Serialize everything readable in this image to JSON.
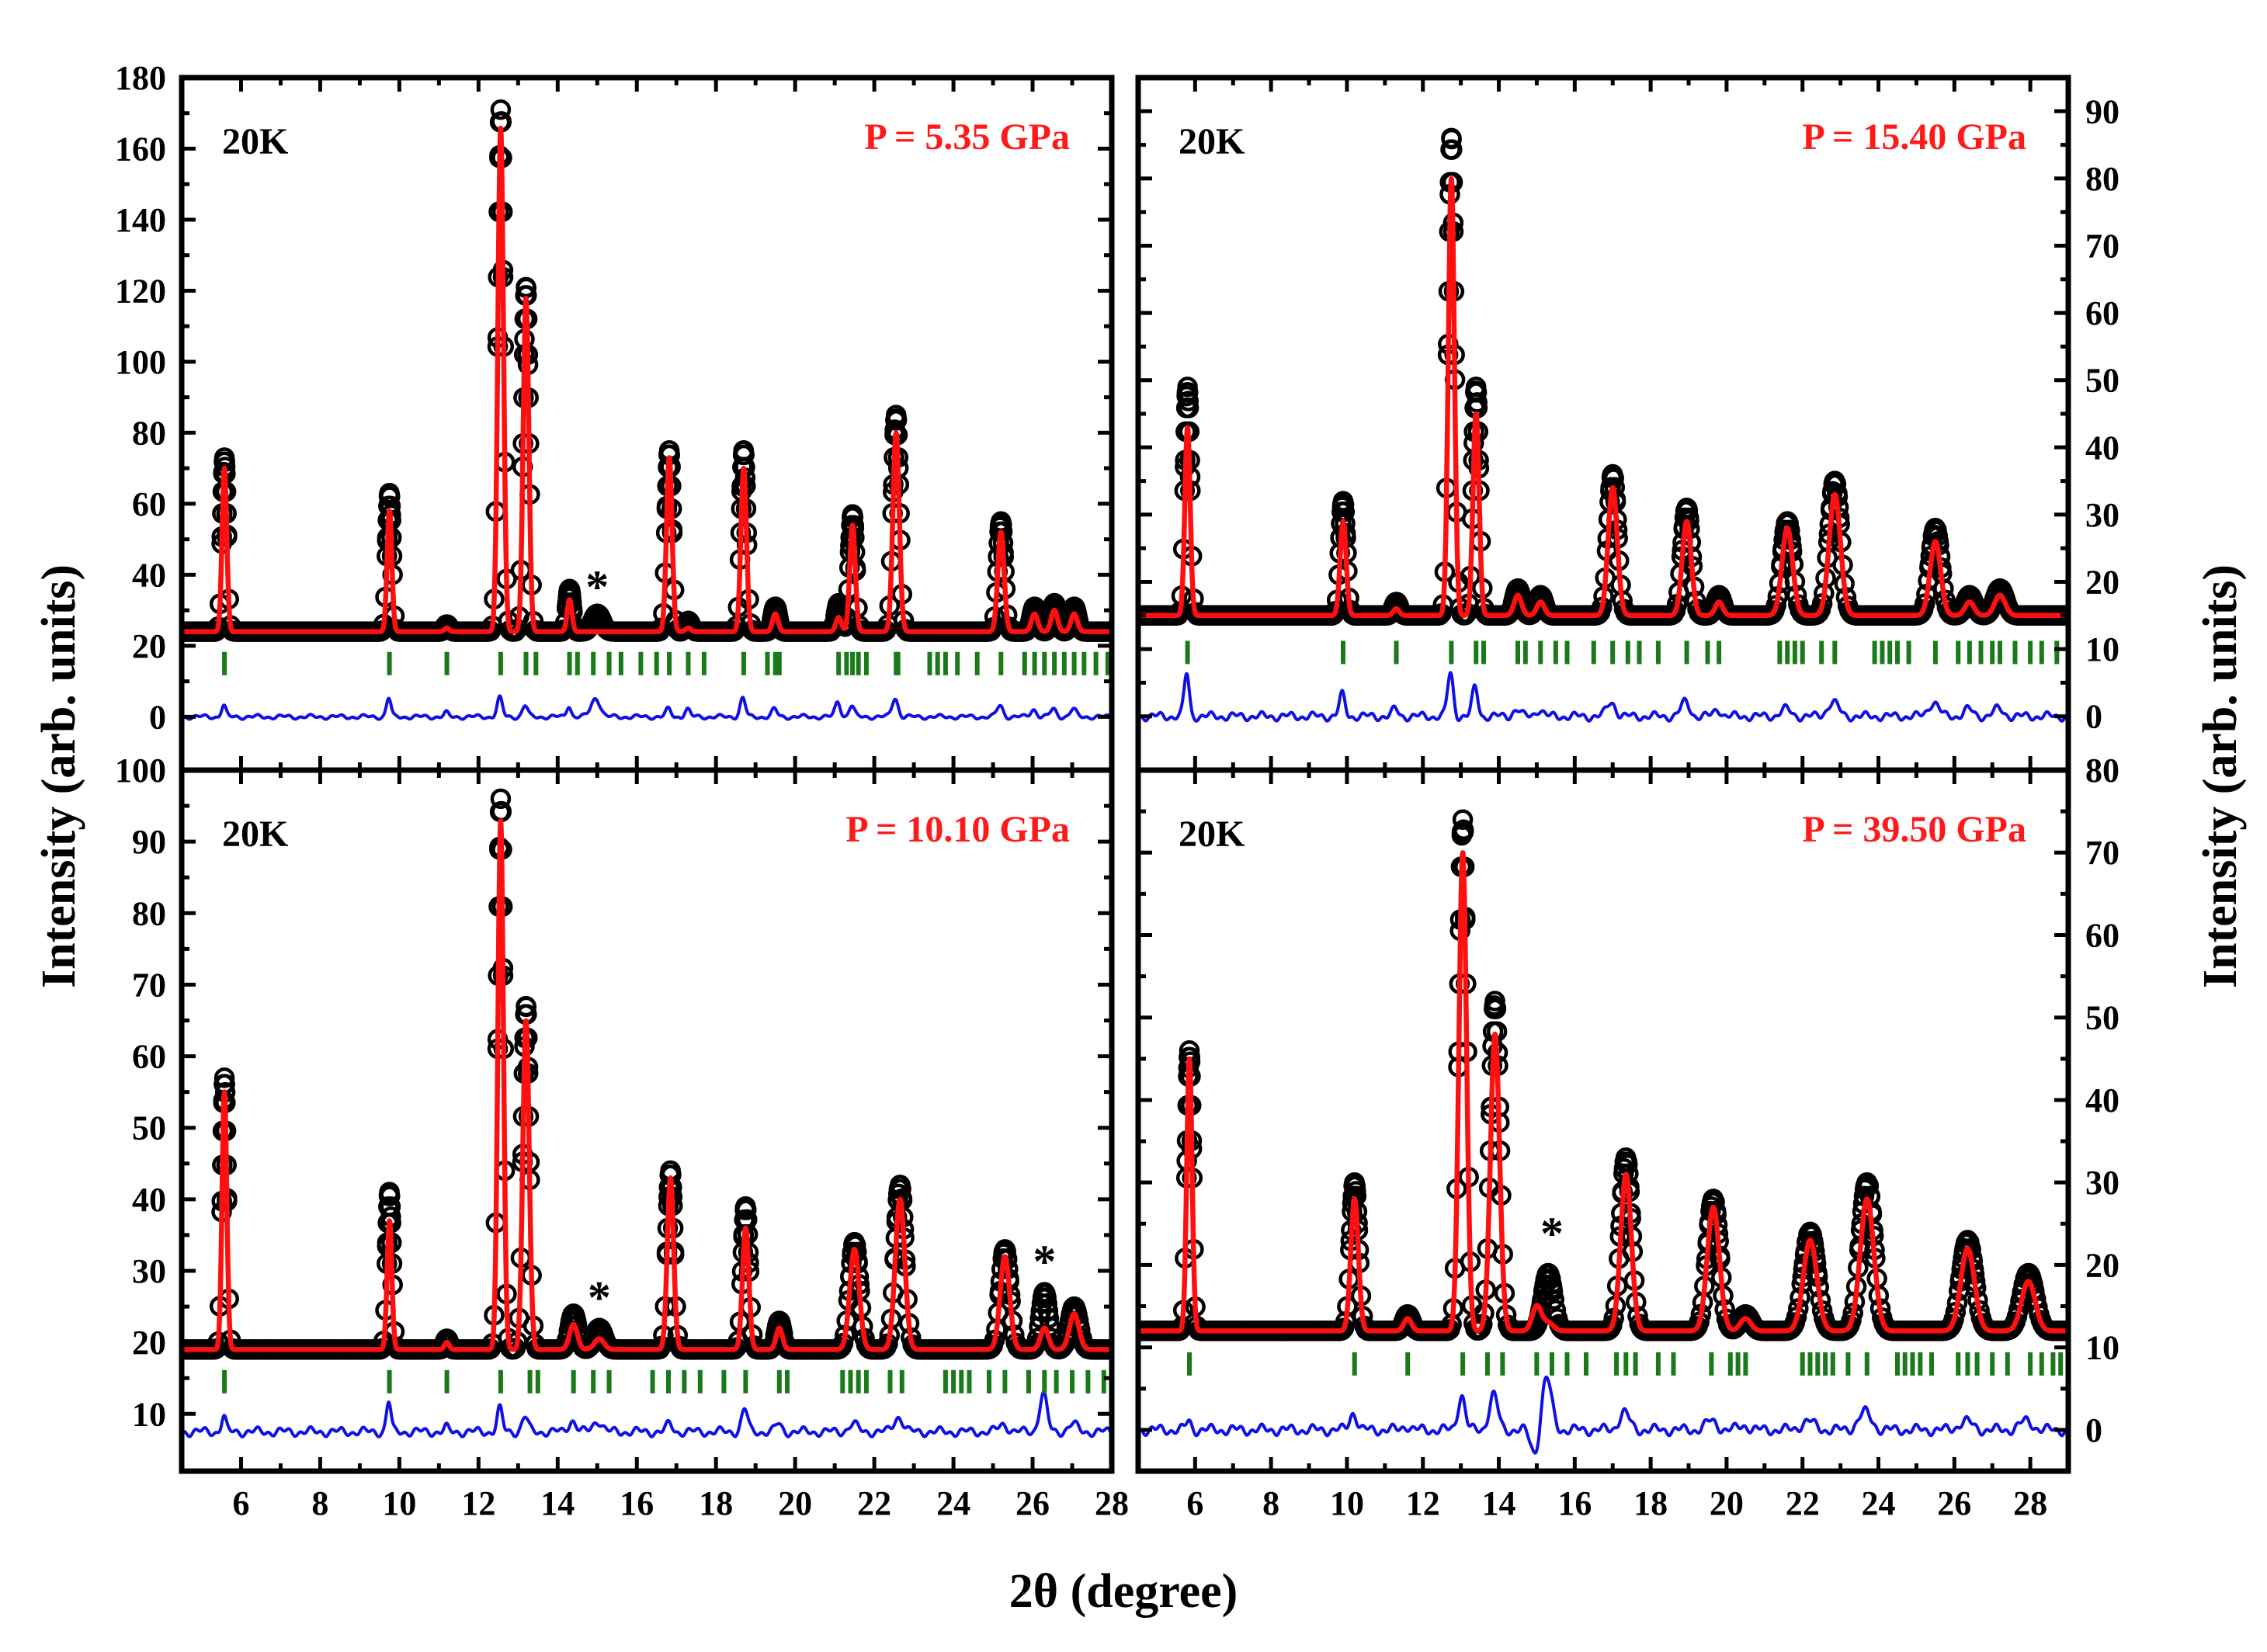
{
  "figure": {
    "x_axis_label": "2θ (degree)",
    "y_axis_label_left": "Intensity (arb. units)",
    "y_axis_label_right": "Intensity (arb. units)"
  },
  "colors": {
    "observed": "#000000",
    "calculated": "#ff1010",
    "difference": "#1010e6",
    "bragg": "#1a7a1a",
    "pressure_label": "#ff1a1a"
  },
  "chart_data": [
    {
      "type": "line",
      "panel": "top-left",
      "temperature_label": "20K",
      "pressure_label": "P = 5.35 GPa",
      "xlim": [
        4.5,
        28
      ],
      "ylim": [
        -15,
        180
      ],
      "xticks": [
        6,
        8,
        10,
        12,
        14,
        16,
        18,
        20,
        22,
        24,
        26,
        28
      ],
      "yticks": [
        0,
        20,
        40,
        60,
        80,
        100,
        120,
        140,
        160,
        180
      ],
      "y_axis_side": "left",
      "show_x_tick_labels": false,
      "baseline": 24,
      "bragg_y": 15,
      "diff_offset": 0,
      "peaks": [
        {
          "x": 5.58,
          "obs": 73,
          "calc": 70,
          "w": 0.06
        },
        {
          "x": 9.75,
          "obs": 63,
          "calc": 58,
          "w": 0.06
        },
        {
          "x": 11.2,
          "obs": 26,
          "calc": 25,
          "w": 0.06
        },
        {
          "x": 12.56,
          "obs": 171,
          "calc": 166,
          "w": 0.07
        },
        {
          "x": 13.2,
          "obs": 121,
          "calc": 118,
          "w": 0.07
        },
        {
          "x": 14.3,
          "obs": 36,
          "calc": 33,
          "w": 0.06
        },
        {
          "x": 15.0,
          "obs": 29,
          "calc": 24,
          "w": 0.12
        },
        {
          "x": 16.82,
          "obs": 75,
          "calc": 73,
          "w": 0.07
        },
        {
          "x": 17.3,
          "obs": 27,
          "calc": 25,
          "w": 0.07
        },
        {
          "x": 18.7,
          "obs": 75,
          "calc": 70,
          "w": 0.07
        },
        {
          "x": 19.5,
          "obs": 31,
          "calc": 29,
          "w": 0.07
        },
        {
          "x": 21.1,
          "obs": 32,
          "calc": 28,
          "w": 0.07
        },
        {
          "x": 21.45,
          "obs": 57,
          "calc": 54,
          "w": 0.07
        },
        {
          "x": 22.55,
          "obs": 85,
          "calc": 80,
          "w": 0.08
        },
        {
          "x": 25.2,
          "obs": 55,
          "calc": 52,
          "w": 0.08
        },
        {
          "x": 26.05,
          "obs": 31,
          "calc": 29,
          "w": 0.08
        },
        {
          "x": 26.55,
          "obs": 32,
          "calc": 30,
          "w": 0.08
        },
        {
          "x": 27.05,
          "obs": 31,
          "calc": 29,
          "w": 0.08
        }
      ],
      "bragg_positions": [
        5.58,
        9.75,
        11.2,
        12.56,
        13.2,
        13.45,
        14.3,
        14.5,
        14.9,
        15.3,
        15.6,
        16.1,
        16.5,
        16.82,
        17.3,
        17.7,
        18.7,
        19.3,
        19.5,
        19.6,
        21.1,
        21.3,
        21.45,
        21.6,
        21.8,
        22.55,
        22.6,
        23.4,
        23.6,
        23.8,
        24.1,
        24.6,
        25.2,
        25.8,
        26.05,
        26.3,
        26.55,
        26.8,
        27.05,
        27.3,
        27.6,
        27.9
      ],
      "annotations": [
        {
          "text": "*",
          "x": 15.0,
          "y": 37
        }
      ]
    },
    {
      "type": "line",
      "panel": "top-right",
      "temperature_label": "20K",
      "pressure_label": "P = 15.40 GPa",
      "xlim": [
        4.5,
        29
      ],
      "ylim": [
        -8,
        95
      ],
      "xticks": [
        6,
        8,
        10,
        12,
        14,
        16,
        18,
        20,
        22,
        24,
        26,
        28
      ],
      "yticks": [
        0,
        10,
        20,
        30,
        40,
        50,
        60,
        70,
        80,
        90
      ],
      "y_axis_side": "right",
      "show_x_tick_labels": false,
      "baseline": 15,
      "bragg_y": 9.5,
      "diff_offset": 0,
      "peaks": [
        {
          "x": 5.8,
          "obs": 49,
          "calc": 43,
          "w": 0.07
        },
        {
          "x": 9.9,
          "obs": 32,
          "calc": 29,
          "w": 0.08
        },
        {
          "x": 11.3,
          "obs": 17,
          "calc": 16,
          "w": 0.08
        },
        {
          "x": 12.75,
          "obs": 86,
          "calc": 80,
          "w": 0.08
        },
        {
          "x": 13.4,
          "obs": 49,
          "calc": 45,
          "w": 0.08
        },
        {
          "x": 14.5,
          "obs": 19,
          "calc": 18,
          "w": 0.1
        },
        {
          "x": 15.1,
          "obs": 18,
          "calc": 17,
          "w": 0.1
        },
        {
          "x": 17.0,
          "obs": 36,
          "calc": 34,
          "w": 0.12
        },
        {
          "x": 18.95,
          "obs": 31,
          "calc": 29,
          "w": 0.12
        },
        {
          "x": 19.8,
          "obs": 18,
          "calc": 17,
          "w": 0.1
        },
        {
          "x": 21.6,
          "obs": 29,
          "calc": 28,
          "w": 0.14
        },
        {
          "x": 22.85,
          "obs": 35,
          "calc": 33,
          "w": 0.15
        },
        {
          "x": 25.5,
          "obs": 28,
          "calc": 26,
          "w": 0.14
        },
        {
          "x": 26.4,
          "obs": 18,
          "calc": 17,
          "w": 0.12
        },
        {
          "x": 27.2,
          "obs": 19,
          "calc": 18,
          "w": 0.14
        }
      ],
      "bragg_positions": [
        5.8,
        9.9,
        11.3,
        12.75,
        13.4,
        13.6,
        14.5,
        14.7,
        15.1,
        15.5,
        15.8,
        16.5,
        17.0,
        17.4,
        17.7,
        18.2,
        18.95,
        19.5,
        19.8,
        21.4,
        21.6,
        21.8,
        22.0,
        22.5,
        22.85,
        23.9,
        24.1,
        24.3,
        24.5,
        24.8,
        25.5,
        26.1,
        26.4,
        26.7,
        27.0,
        27.2,
        27.6,
        28.0,
        28.3,
        28.7
      ],
      "annotations": []
    },
    {
      "type": "line",
      "panel": "bottom-left",
      "temperature_label": "20K",
      "pressure_label": "P = 10.10 GPa",
      "xlim": [
        4.5,
        28
      ],
      "ylim": [
        2,
        100
      ],
      "xticks": [
        6,
        8,
        10,
        12,
        14,
        16,
        18,
        20,
        22,
        24,
        26,
        28
      ],
      "yticks": [
        10,
        20,
        30,
        40,
        50,
        60,
        70,
        80,
        90,
        100
      ],
      "y_axis_side": "left",
      "show_x_tick_labels": true,
      "baseline": 19,
      "bragg_y": 14.5,
      "diff_offset": 7.5,
      "peaks": [
        {
          "x": 5.58,
          "obs": 57,
          "calc": 55,
          "w": 0.06
        },
        {
          "x": 9.75,
          "obs": 41,
          "calc": 37,
          "w": 0.06
        },
        {
          "x": 11.2,
          "obs": 20.5,
          "calc": 20,
          "w": 0.06
        },
        {
          "x": 12.56,
          "obs": 96,
          "calc": 93,
          "w": 0.07
        },
        {
          "x": 13.2,
          "obs": 67,
          "calc": 65,
          "w": 0.08
        },
        {
          "x": 14.4,
          "obs": 24,
          "calc": 22.5,
          "w": 0.1
        },
        {
          "x": 15.05,
          "obs": 22,
          "calc": 20.5,
          "w": 0.12
        },
        {
          "x": 16.85,
          "obs": 44,
          "calc": 43,
          "w": 0.08
        },
        {
          "x": 18.75,
          "obs": 39,
          "calc": 36,
          "w": 0.08
        },
        {
          "x": 19.6,
          "obs": 23,
          "calc": 22,
          "w": 0.08
        },
        {
          "x": 21.5,
          "obs": 34,
          "calc": 33,
          "w": 0.12
        },
        {
          "x": 22.65,
          "obs": 42,
          "calc": 40,
          "w": 0.12
        },
        {
          "x": 25.3,
          "obs": 33,
          "calc": 32,
          "w": 0.12
        },
        {
          "x": 26.3,
          "obs": 27,
          "calc": 22,
          "w": 0.1
        },
        {
          "x": 27.05,
          "obs": 25,
          "calc": 24,
          "w": 0.12
        }
      ],
      "bragg_positions": [
        5.58,
        9.75,
        11.2,
        12.56,
        13.3,
        13.5,
        14.4,
        14.9,
        15.3,
        16.4,
        16.8,
        17.2,
        17.6,
        18.2,
        18.75,
        19.6,
        19.8,
        21.2,
        21.4,
        21.6,
        21.8,
        22.4,
        22.7,
        23.8,
        24.0,
        24.2,
        24.4,
        24.9,
        25.3,
        25.9,
        26.3,
        26.6,
        27.0,
        27.4,
        27.8
      ],
      "annotations": [
        {
          "text": "*",
          "x": 15.05,
          "y": 26.5
        },
        {
          "text": "*",
          "x": 26.3,
          "y": 31.5
        }
      ]
    },
    {
      "type": "line",
      "panel": "bottom-right",
      "temperature_label": "20K",
      "pressure_label": "P = 39.50 GPa",
      "xlim": [
        4.5,
        29
      ],
      "ylim": [
        -5,
        80
      ],
      "xticks": [
        6,
        8,
        10,
        12,
        14,
        16,
        18,
        20,
        22,
        24,
        26,
        28
      ],
      "yticks": [
        0,
        10,
        20,
        30,
        40,
        50,
        60,
        70,
        80
      ],
      "y_axis_side": "right",
      "show_x_tick_labels": true,
      "baseline": 12,
      "bragg_y": 8,
      "diff_offset": 0,
      "peaks": [
        {
          "x": 5.85,
          "obs": 46,
          "calc": 45,
          "w": 0.07
        },
        {
          "x": 10.2,
          "obs": 30,
          "calc": 28,
          "w": 0.1
        },
        {
          "x": 11.6,
          "obs": 14,
          "calc": 13.5,
          "w": 0.1
        },
        {
          "x": 13.05,
          "obs": 74,
          "calc": 70,
          "w": 0.1
        },
        {
          "x": 13.9,
          "obs": 52,
          "calc": 48,
          "w": 0.12
        },
        {
          "x": 15.3,
          "obs": 19,
          "calc": 13,
          "w": 0.14
        },
        {
          "x": 15.0,
          "obs": 12,
          "calc": 15,
          "w": 0.12
        },
        {
          "x": 17.35,
          "obs": 33,
          "calc": 31,
          "w": 0.14
        },
        {
          "x": 19.65,
          "obs": 28,
          "calc": 27,
          "w": 0.16
        },
        {
          "x": 20.5,
          "obs": 14,
          "calc": 13.5,
          "w": 0.14
        },
        {
          "x": 22.2,
          "obs": 24,
          "calc": 23,
          "w": 0.18
        },
        {
          "x": 23.7,
          "obs": 30,
          "calc": 28,
          "w": 0.18
        },
        {
          "x": 26.35,
          "obs": 23,
          "calc": 22,
          "w": 0.18
        },
        {
          "x": 27.95,
          "obs": 19,
          "calc": 18,
          "w": 0.18
        }
      ],
      "bragg_positions": [
        5.85,
        10.2,
        11.6,
        13.05,
        13.7,
        14.1,
        15.0,
        15.4,
        15.8,
        16.3,
        17.1,
        17.35,
        17.6,
        18.2,
        18.6,
        19.6,
        20.1,
        20.3,
        20.5,
        22.0,
        22.2,
        22.4,
        22.6,
        22.8,
        23.2,
        23.7,
        24.5,
        24.7,
        24.9,
        25.1,
        25.4,
        26.1,
        26.35,
        26.6,
        27.0,
        27.4,
        28.0,
        28.3,
        28.6,
        28.8
      ],
      "annotations": [
        {
          "text": "*",
          "x": 15.4,
          "y": 24
        }
      ]
    }
  ]
}
